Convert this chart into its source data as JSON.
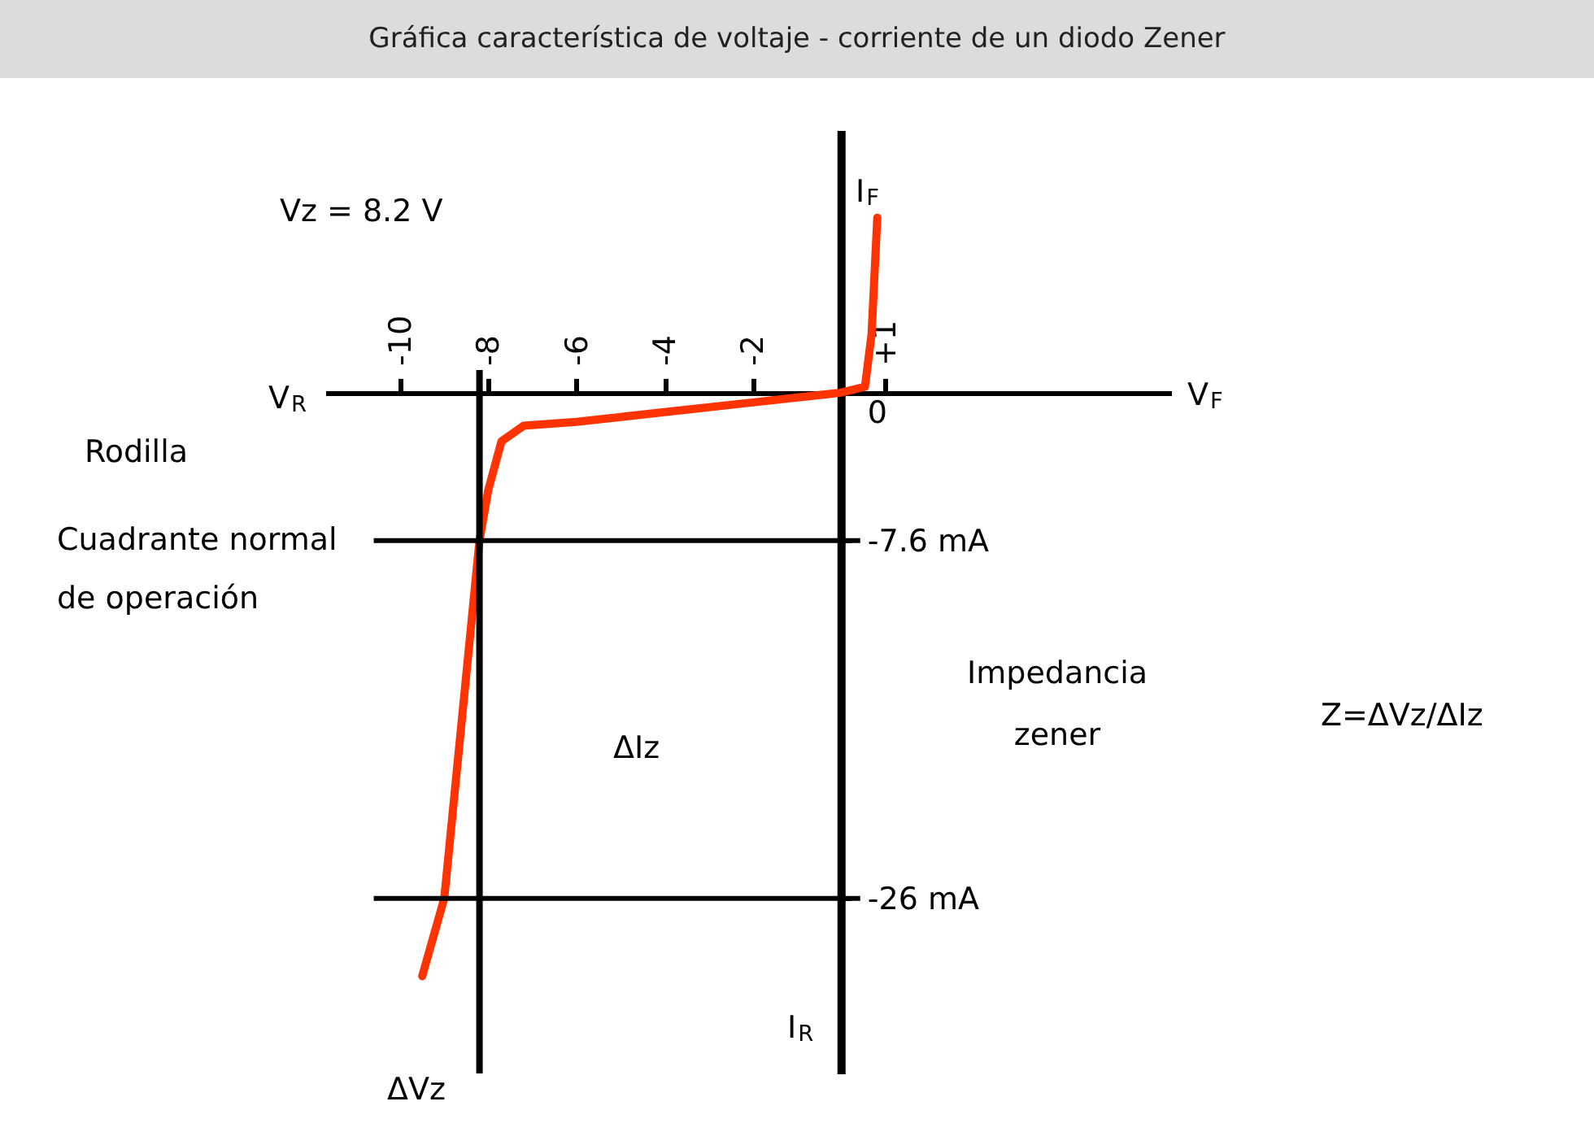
{
  "chart_data": {
    "type": "line",
    "title": "Gráfica característica de voltaje - corriente de un diodo Zener",
    "xlabel": "V$_{F}$",
    "ylabel": "I$_{F}$",
    "x": [
      -9.5,
      -9.0,
      -8.2,
      -8.0,
      -7.7,
      -7.2,
      -6,
      -4,
      -2,
      0,
      0.55,
      0.7,
      0.83
    ],
    "values": [
      -30,
      -26,
      -7.6,
      -5,
      -2.5,
      -1.7,
      -1.5,
      -1,
      -0.5,
      0,
      0.3,
      3,
      9
    ],
    "color": "#ff3300",
    "xlim": [
      -11.7,
      7.5
    ],
    "ylim": [
      -35,
      13.5
    ],
    "xticks": [
      -10,
      -8,
      -6,
      -4,
      -2,
      {
        "value": 1,
        "label": "+1"
      }
    ],
    "yticks": [
      {
        "value": -7.6,
        "label": "-7.6 mA"
      },
      {
        "value": -26,
        "label": "-26 mA"
      },
      {
        "value": 0,
        "label": "0"
      }
    ],
    "ref_lines": [
      {
        "axis": "x",
        "value": -8.2
      },
      {
        "axis": "y",
        "value": -7.6
      },
      {
        "axis": "y",
        "value": -26
      }
    ],
    "annotations": [
      "V$_{R}$",
      "I$_{R}$",
      "Rodilla",
      "Cuadrante normal de operación",
      "ΔIz",
      "ΔVz",
      "Impedancia zener",
      "Z=ΔVz/ΔIz",
      "Vz = 8.2 V"
    ],
    "line_style": "solid",
    "marker": "none"
  }
}
